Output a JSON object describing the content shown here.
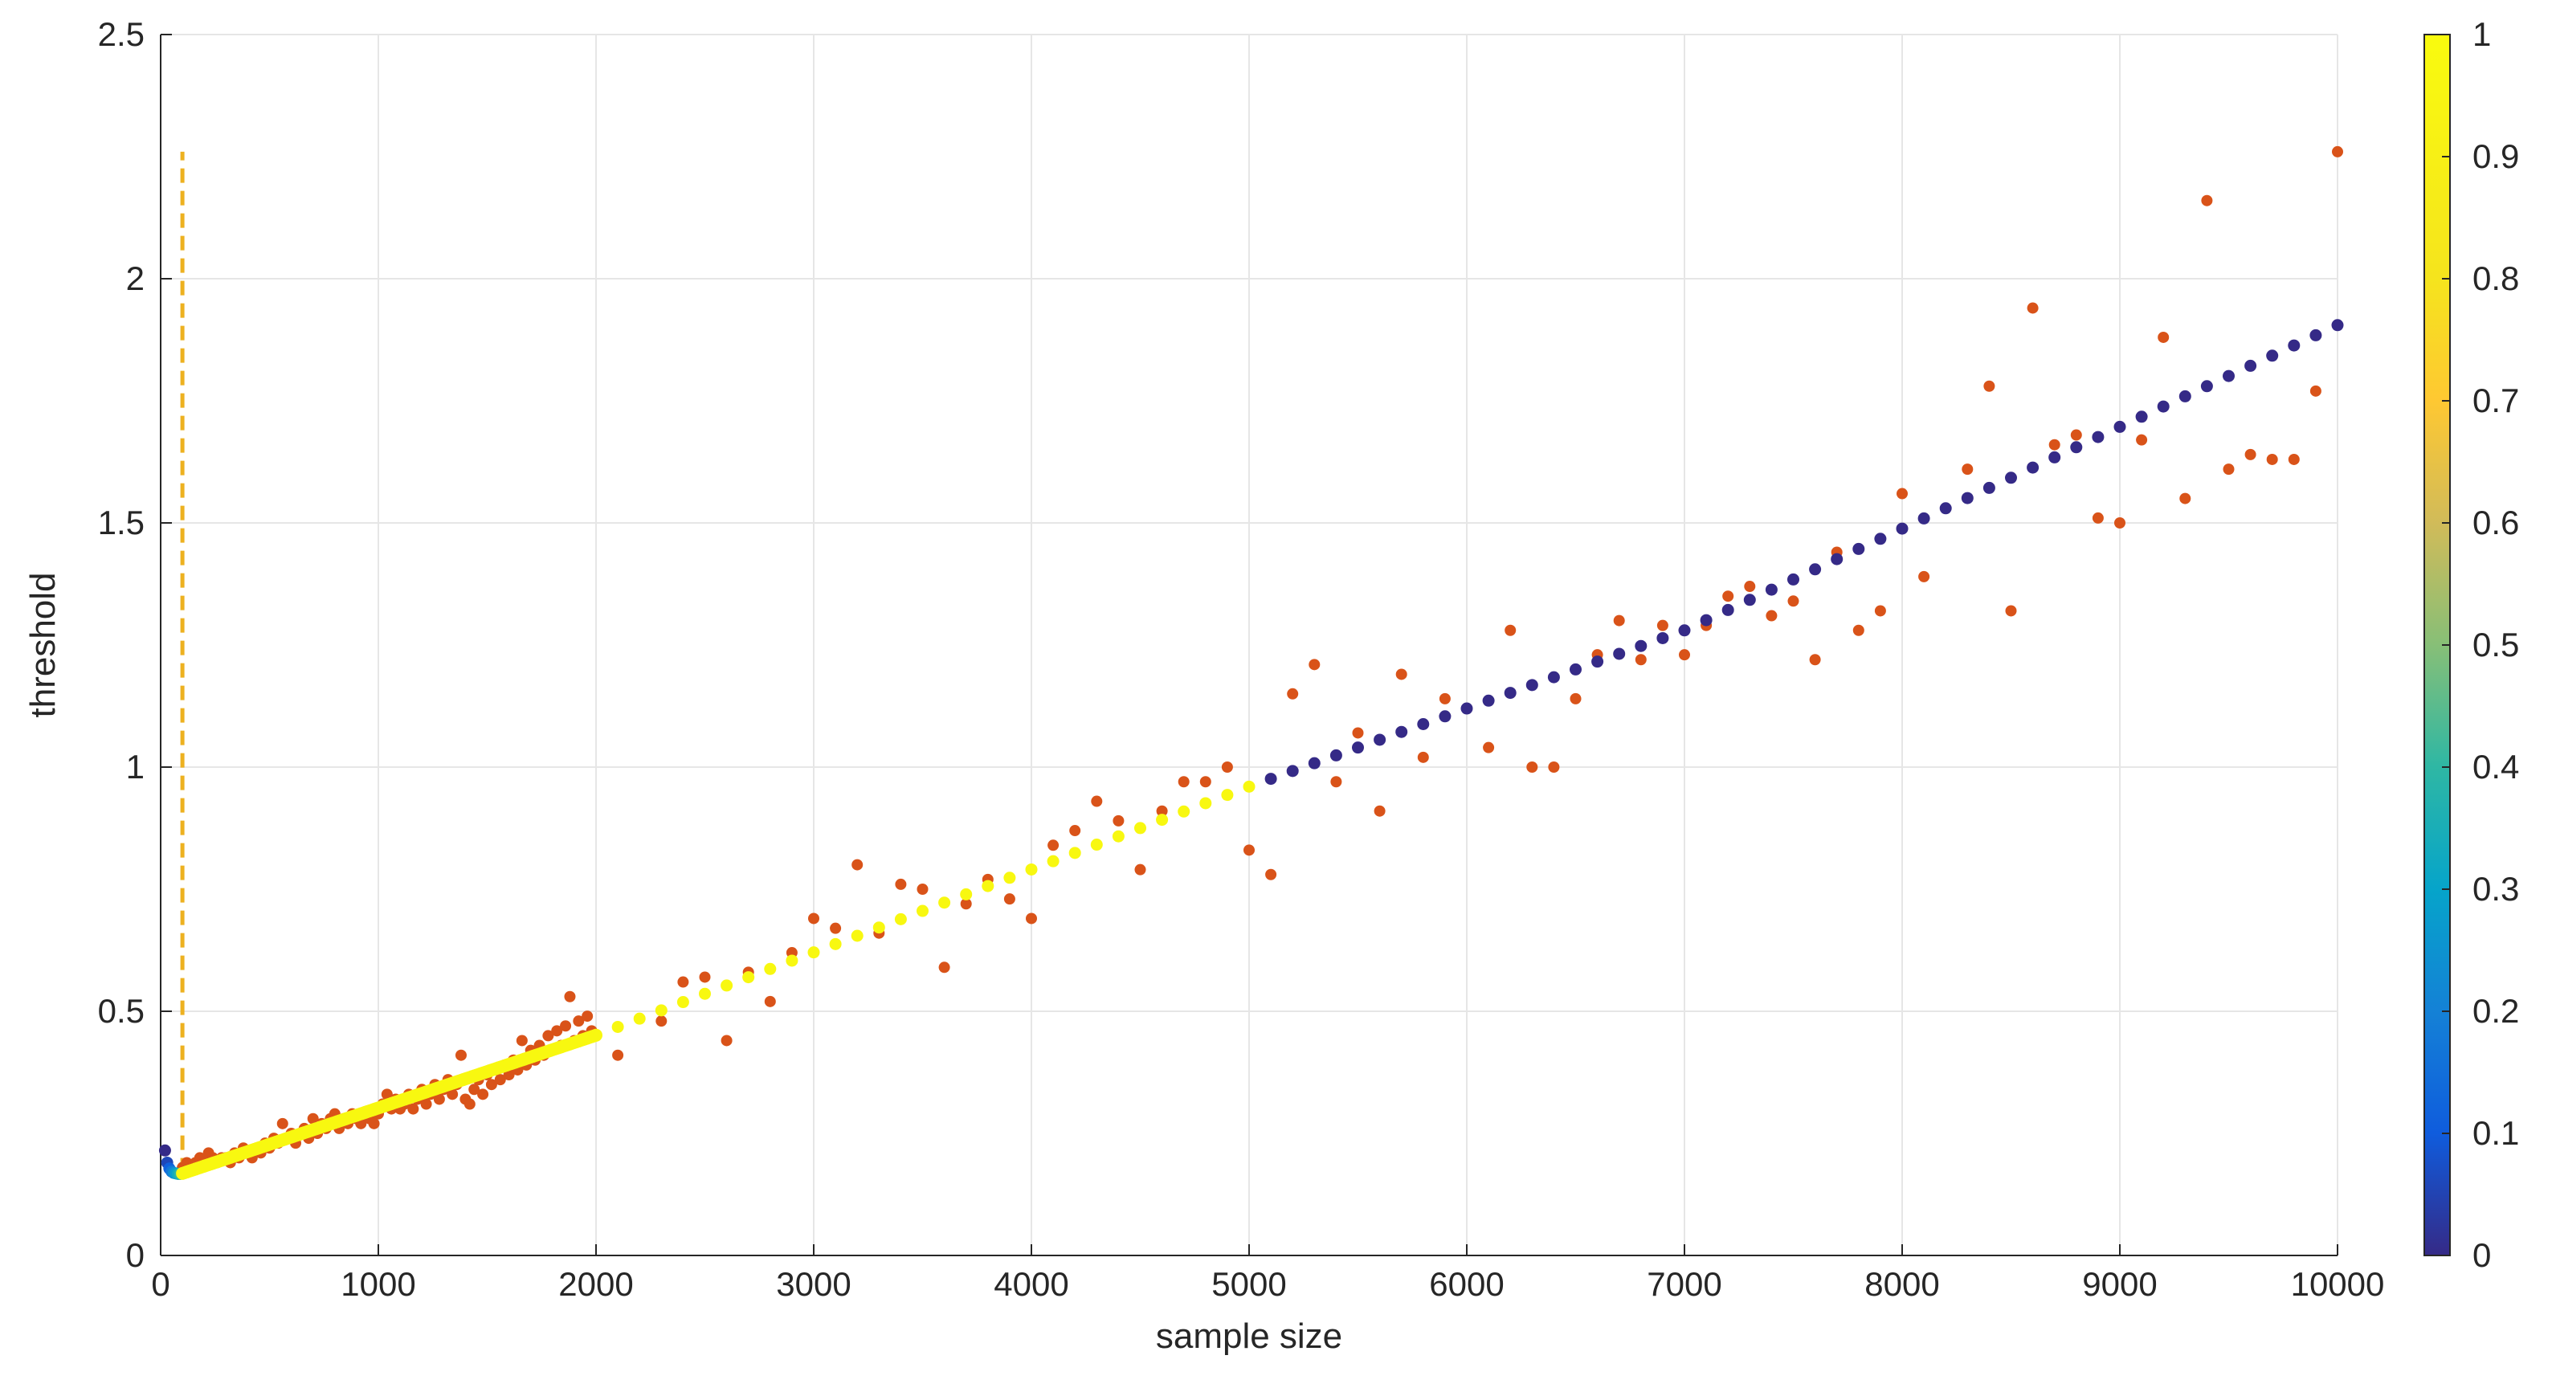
{
  "chart_data": {
    "type": "scatter",
    "xlabel": "sample size",
    "ylabel": "threshold",
    "xlim": [
      0,
      10000
    ],
    "ylim": [
      0,
      2.5
    ],
    "xticks": [
      0,
      1000,
      2000,
      3000,
      4000,
      5000,
      6000,
      7000,
      8000,
      9000,
      10000
    ],
    "yticks": [
      0,
      0.5,
      1,
      1.5,
      2,
      2.5
    ],
    "grid": true,
    "colorbar": {
      "range": [
        0,
        1
      ],
      "ticks": [
        0,
        0.1,
        0.2,
        0.3,
        0.4,
        0.5,
        0.6,
        0.7,
        0.8,
        0.9,
        1
      ],
      "colormap": "parula"
    },
    "vertical_line": {
      "x": 100,
      "y_range": [
        0.17,
        2.26
      ],
      "color": "#EDB120",
      "style": "dashed"
    },
    "observed": {
      "color": "#D95319",
      "points": [
        [
          100,
          0.18
        ],
        [
          120,
          0.19
        ],
        [
          140,
          0.18
        ],
        [
          160,
          0.19
        ],
        [
          180,
          0.2
        ],
        [
          200,
          0.19
        ],
        [
          220,
          0.21
        ],
        [
          240,
          0.2
        ],
        [
          260,
          0.19
        ],
        [
          280,
          0.2
        ],
        [
          300,
          0.2
        ],
        [
          320,
          0.19
        ],
        [
          340,
          0.21
        ],
        [
          360,
          0.2
        ],
        [
          380,
          0.22
        ],
        [
          400,
          0.21
        ],
        [
          420,
          0.2
        ],
        [
          440,
          0.22
        ],
        [
          460,
          0.21
        ],
        [
          480,
          0.23
        ],
        [
          500,
          0.22
        ],
        [
          520,
          0.24
        ],
        [
          540,
          0.23
        ],
        [
          560,
          0.27
        ],
        [
          580,
          0.24
        ],
        [
          600,
          0.25
        ],
        [
          620,
          0.23
        ],
        [
          640,
          0.25
        ],
        [
          660,
          0.26
        ],
        [
          680,
          0.24
        ],
        [
          700,
          0.28
        ],
        [
          720,
          0.25
        ],
        [
          740,
          0.27
        ],
        [
          760,
          0.26
        ],
        [
          780,
          0.28
        ],
        [
          800,
          0.29
        ],
        [
          820,
          0.26
        ],
        [
          840,
          0.28
        ],
        [
          860,
          0.27
        ],
        [
          880,
          0.29
        ],
        [
          900,
          0.28
        ],
        [
          920,
          0.27
        ],
        [
          940,
          0.29
        ],
        [
          960,
          0.28
        ],
        [
          980,
          0.27
        ],
        [
          1000,
          0.29
        ],
        [
          1020,
          0.31
        ],
        [
          1040,
          0.33
        ],
        [
          1060,
          0.3
        ],
        [
          1080,
          0.32
        ],
        [
          1100,
          0.3
        ],
        [
          1120,
          0.31
        ],
        [
          1140,
          0.33
        ],
        [
          1160,
          0.3
        ],
        [
          1180,
          0.32
        ],
        [
          1200,
          0.34
        ],
        [
          1220,
          0.31
        ],
        [
          1240,
          0.33
        ],
        [
          1260,
          0.35
        ],
        [
          1280,
          0.32
        ],
        [
          1300,
          0.34
        ],
        [
          1320,
          0.36
        ],
        [
          1340,
          0.33
        ],
        [
          1360,
          0.35
        ],
        [
          1380,
          0.41
        ],
        [
          1400,
          0.32
        ],
        [
          1420,
          0.31
        ],
        [
          1440,
          0.34
        ],
        [
          1460,
          0.36
        ],
        [
          1480,
          0.33
        ],
        [
          1500,
          0.37
        ],
        [
          1520,
          0.35
        ],
        [
          1540,
          0.38
        ],
        [
          1560,
          0.36
        ],
        [
          1580,
          0.39
        ],
        [
          1600,
          0.37
        ],
        [
          1620,
          0.4
        ],
        [
          1640,
          0.38
        ],
        [
          1660,
          0.44
        ],
        [
          1680,
          0.39
        ],
        [
          1700,
          0.42
        ],
        [
          1720,
          0.4
        ],
        [
          1740,
          0.43
        ],
        [
          1760,
          0.41
        ],
        [
          1780,
          0.45
        ],
        [
          1800,
          0.42
        ],
        [
          1820,
          0.46
        ],
        [
          1840,
          0.43
        ],
        [
          1860,
          0.47
        ],
        [
          1880,
          0.53
        ],
        [
          1900,
          0.44
        ],
        [
          1920,
          0.48
        ],
        [
          1940,
          0.45
        ],
        [
          1960,
          0.49
        ],
        [
          1980,
          0.46
        ],
        [
          2100,
          0.41
        ],
        [
          2300,
          0.48
        ],
        [
          2400,
          0.56
        ],
        [
          2500,
          0.57
        ],
        [
          2600,
          0.44
        ],
        [
          2700,
          0.58
        ],
        [
          2800,
          0.52
        ],
        [
          2900,
          0.62
        ],
        [
          3000,
          0.69
        ],
        [
          3100,
          0.67
        ],
        [
          3200,
          0.8
        ],
        [
          3300,
          0.66
        ],
        [
          3400,
          0.76
        ],
        [
          3500,
          0.75
        ],
        [
          3600,
          0.59
        ],
        [
          3700,
          0.72
        ],
        [
          3800,
          0.77
        ],
        [
          3900,
          0.73
        ],
        [
          4000,
          0.69
        ],
        [
          4100,
          0.84
        ],
        [
          4200,
          0.87
        ],
        [
          4300,
          0.93
        ],
        [
          4400,
          0.89
        ],
        [
          4500,
          0.79
        ],
        [
          4600,
          0.91
        ],
        [
          4700,
          0.97
        ],
        [
          4800,
          0.97
        ],
        [
          4900,
          1.0
        ],
        [
          5000,
          0.83
        ],
        [
          5100,
          0.78
        ],
        [
          5200,
          1.15
        ],
        [
          5300,
          1.21
        ],
        [
          5400,
          0.97
        ],
        [
          5500,
          1.07
        ],
        [
          5600,
          0.91
        ],
        [
          5700,
          1.19
        ],
        [
          5800,
          1.02
        ],
        [
          5900,
          1.14
        ],
        [
          6000,
          1.12
        ],
        [
          6100,
          1.04
        ],
        [
          6200,
          1.28
        ],
        [
          6300,
          1.0
        ],
        [
          6400,
          1.0
        ],
        [
          6500,
          1.14
        ],
        [
          6600,
          1.23
        ],
        [
          6700,
          1.3
        ],
        [
          6800,
          1.22
        ],
        [
          6900,
          1.29
        ],
        [
          7000,
          1.23
        ],
        [
          7100,
          1.29
        ],
        [
          7200,
          1.35
        ],
        [
          7300,
          1.37
        ],
        [
          7400,
          1.31
        ],
        [
          7500,
          1.34
        ],
        [
          7600,
          1.22
        ],
        [
          7700,
          1.44
        ],
        [
          7800,
          1.28
        ],
        [
          7900,
          1.32
        ],
        [
          8000,
          1.56
        ],
        [
          8100,
          1.39
        ],
        [
          8200,
          1.53
        ],
        [
          8300,
          1.61
        ],
        [
          8400,
          1.78
        ],
        [
          8500,
          1.32
        ],
        [
          8600,
          1.94
        ],
        [
          8700,
          1.66
        ],
        [
          8800,
          1.68
        ],
        [
          8900,
          1.51
        ],
        [
          9000,
          1.5
        ],
        [
          9100,
          1.67
        ],
        [
          9200,
          1.88
        ],
        [
          9300,
          1.55
        ],
        [
          9400,
          2.16
        ],
        [
          9500,
          1.61
        ],
        [
          9600,
          1.64
        ],
        [
          9700,
          1.63
        ],
        [
          9800,
          1.63
        ],
        [
          9900,
          1.77
        ],
        [
          10000,
          2.26
        ]
      ]
    },
    "fitted": {
      "color_by": "colorbar value",
      "curve": [
        [
          100,
          0.168
        ],
        [
          2000,
          0.451
        ],
        [
          5000,
          0.96
        ],
        [
          7000,
          1.28
        ],
        [
          10000,
          1.905
        ]
      ],
      "weights": [
        {
          "x_range": [
            10,
            90
          ],
          "start_weight": 0.0,
          "end_weight": 0.4
        },
        {
          "x_range": [
            90,
            2000
          ],
          "weight": 0.97
        },
        {
          "x_range": [
            2000,
            5000
          ],
          "weight": 0.97
        },
        {
          "x_range": [
            5000,
            10000
          ],
          "weight": 0.0
        }
      ],
      "early_points": [
        [
          20,
          0.215
        ],
        [
          30,
          0.19
        ],
        [
          40,
          0.178
        ],
        [
          50,
          0.172
        ],
        [
          60,
          0.169
        ],
        [
          70,
          0.168
        ],
        [
          80,
          0.167
        ],
        [
          90,
          0.167
        ]
      ]
    }
  }
}
